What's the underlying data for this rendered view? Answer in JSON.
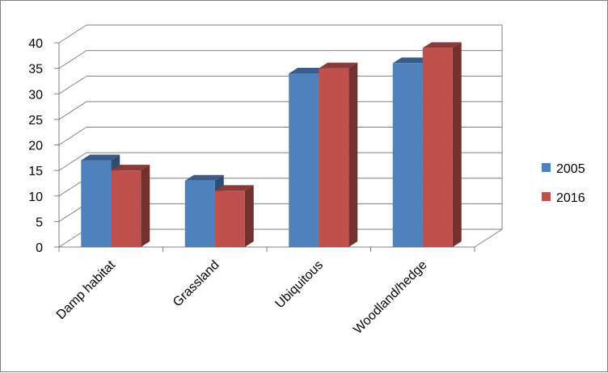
{
  "chart_data": {
    "type": "bar",
    "title": "",
    "xlabel": "",
    "ylabel": "",
    "categories": [
      "Damp habitat",
      "Grassland",
      "Ubiquitous",
      "Woodland/hedge"
    ],
    "series": [
      {
        "name": "2005",
        "values": [
          17,
          13,
          34,
          36
        ]
      },
      {
        "name": "2016",
        "values": [
          15,
          11,
          35,
          39
        ]
      }
    ],
    "ylim": [
      0,
      40
    ],
    "yticks": [
      "0",
      "5",
      "10",
      "15",
      "20",
      "25",
      "30",
      "35",
      "40"
    ],
    "grid": true,
    "legend": "right",
    "style": "3d-clustered-column",
    "colors": {
      "2005": "#4f81bd",
      "2016": "#c0504d",
      "gridline": "#7f7f7f"
    }
  }
}
